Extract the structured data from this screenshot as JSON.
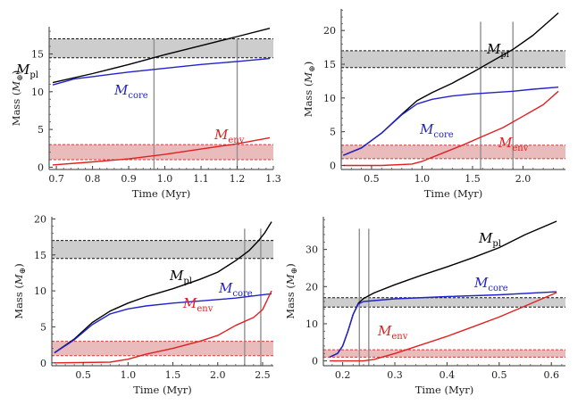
{
  "chart_data": [
    {
      "type": "line",
      "xlabel": "Time (Myr)",
      "ylabel_prefix": "Mass (",
      "ylabel_sym": "M",
      "ylabel_sub": "⊕",
      "ylabel_suffix": ")",
      "xlim": [
        0.68,
        1.3
      ],
      "ylim": [
        -0.3,
        18.6
      ],
      "xticks": [
        0.7,
        0.8,
        0.9,
        1.0,
        1.1,
        1.2,
        1.3
      ],
      "xticklabels": [
        "0.7",
        "0.8",
        "0.9",
        "1.0",
        "1.1",
        "1.2",
        "1.3"
      ],
      "yticks": [
        0,
        5,
        10,
        15
      ],
      "yticklabels": [
        "0",
        "5",
        "10",
        "15"
      ],
      "bands": [
        {
          "lo": 14.5,
          "hi": 17.0,
          "fill": "#c8c8c8",
          "edge": "#111111"
        },
        {
          "lo": 1.0,
          "hi": 3.0,
          "fill": "#e8b4b4",
          "edge": "#d43a3a"
        }
      ],
      "vlines": [
        0.97,
        1.2
      ],
      "series": [
        {
          "name": "pl",
          "color": "#000000",
          "x": [
            0.69,
            0.8,
            0.9,
            1.0,
            1.1,
            1.2,
            1.29
          ],
          "y": [
            11.2,
            12.4,
            13.6,
            14.9,
            16.1,
            17.3,
            18.4
          ]
        },
        {
          "name": "core",
          "color": "#2222cc",
          "x": [
            0.69,
            0.75,
            0.8,
            0.9,
            1.0,
            1.1,
            1.2,
            1.29
          ],
          "y": [
            10.9,
            11.7,
            12.0,
            12.6,
            13.1,
            13.6,
            14.0,
            14.4
          ]
        },
        {
          "name": "env",
          "color": "#e02020",
          "x": [
            0.69,
            0.8,
            0.9,
            1.0,
            1.1,
            1.2,
            1.29
          ],
          "y": [
            0.3,
            0.7,
            1.1,
            1.7,
            2.4,
            3.1,
            3.9
          ]
        }
      ]
    },
    {
      "type": "line",
      "xlabel": "Time (Myr)",
      "ylabel_prefix": "Mass (",
      "ylabel_sym": "M",
      "ylabel_sub": "⊕",
      "ylabel_suffix": ")",
      "xlim": [
        0.2,
        2.42
      ],
      "ylim": [
        -0.6,
        23.2
      ],
      "xticks": [
        0.5,
        1.0,
        1.5,
        2.0
      ],
      "xticklabels": [
        "0.5",
        "1.0",
        "1.5",
        "2.0"
      ],
      "yticks": [
        0,
        5,
        10,
        15,
        20
      ],
      "yticklabels": [
        "0",
        "5",
        "10",
        "15",
        "20"
      ],
      "bands": [
        {
          "lo": 14.5,
          "hi": 17.0,
          "fill": "#c8c8c8",
          "edge": "#111111"
        },
        {
          "lo": 1.0,
          "hi": 3.0,
          "fill": "#e8b4b4",
          "edge": "#d43a3a"
        }
      ],
      "vlines": [
        1.58,
        1.9
      ],
      "series": [
        {
          "name": "pl",
          "color": "#000000",
          "x": [
            0.22,
            0.4,
            0.6,
            0.8,
            0.95,
            1.1,
            1.3,
            1.5,
            1.7,
            1.9,
            2.1,
            2.35
          ],
          "y": [
            1.5,
            2.6,
            4.8,
            7.6,
            9.6,
            10.8,
            12.2,
            13.8,
            15.5,
            17.2,
            19.3,
            22.6
          ]
        },
        {
          "name": "core",
          "color": "#2222cc",
          "x": [
            0.22,
            0.4,
            0.6,
            0.8,
            0.95,
            1.1,
            1.3,
            1.5,
            1.7,
            1.9,
            2.1,
            2.35
          ],
          "y": [
            1.5,
            2.6,
            4.8,
            7.5,
            9.1,
            9.8,
            10.3,
            10.6,
            10.8,
            11.0,
            11.3,
            11.6
          ]
        },
        {
          "name": "env",
          "color": "#e02020",
          "x": [
            0.22,
            0.6,
            0.9,
            1.0,
            1.2,
            1.4,
            1.6,
            1.8,
            2.0,
            2.2,
            2.35
          ],
          "y": [
            0.0,
            0.0,
            0.2,
            0.6,
            1.8,
            3.0,
            4.3,
            5.6,
            7.3,
            9.0,
            11.0
          ]
        }
      ]
    },
    {
      "type": "line",
      "xlabel": "Time (Myr)",
      "ylabel_prefix": "Mass (",
      "ylabel_sym": "M",
      "ylabel_sub": "⊕",
      "ylabel_suffix": ")",
      "xlim": [
        0.15,
        2.62
      ],
      "ylim": [
        -0.4,
        20.3
      ],
      "xticks": [
        0.5,
        1.0,
        1.5,
        2.0,
        2.5
      ],
      "xticklabels": [
        "0.5",
        "1.0",
        "1.5",
        "2.0",
        "2.5"
      ],
      "yticks": [
        0,
        5,
        10,
        15,
        20
      ],
      "yticklabels": [
        "0",
        "5",
        "10",
        "15",
        "20"
      ],
      "bands": [
        {
          "lo": 14.5,
          "hi": 17.0,
          "fill": "#c8c8c8",
          "edge": "#111111"
        },
        {
          "lo": 1.0,
          "hi": 3.0,
          "fill": "#e8b4b4",
          "edge": "#d43a3a"
        }
      ],
      "vlines": [
        2.3,
        2.48
      ],
      "series": [
        {
          "name": "pl",
          "color": "#000000",
          "x": [
            0.18,
            0.4,
            0.6,
            0.8,
            1.0,
            1.2,
            1.5,
            1.8,
            2.0,
            2.2,
            2.35,
            2.45,
            2.52,
            2.6
          ],
          "y": [
            1.4,
            3.3,
            5.6,
            7.2,
            8.3,
            9.2,
            10.3,
            11.6,
            12.6,
            14.2,
            15.6,
            16.9,
            18.0,
            19.6
          ]
        },
        {
          "name": "core",
          "color": "#2222cc",
          "x": [
            0.18,
            0.4,
            0.6,
            0.8,
            1.0,
            1.2,
            1.5,
            1.8,
            2.0,
            2.2,
            2.4,
            2.6
          ],
          "y": [
            1.4,
            3.2,
            5.3,
            6.8,
            7.5,
            7.9,
            8.3,
            8.6,
            8.8,
            9.0,
            9.3,
            9.6
          ]
        },
        {
          "name": "env",
          "color": "#e02020",
          "x": [
            0.18,
            0.8,
            1.0,
            1.2,
            1.5,
            1.8,
            2.0,
            2.2,
            2.4,
            2.5,
            2.6
          ],
          "y": [
            0.0,
            0.1,
            0.5,
            1.2,
            2.0,
            3.0,
            3.8,
            5.2,
            6.3,
            7.4,
            10.0
          ]
        }
      ]
    },
    {
      "type": "line",
      "xlabel": "Time (Myr)",
      "ylabel_prefix": "Mass (",
      "ylabel_sym": "M",
      "ylabel_sub": "⊕",
      "ylabel_suffix": ")",
      "xlim": [
        0.163,
        0.627
      ],
      "ylim": [
        -1.3,
        38.8
      ],
      "xticks": [
        0.2,
        0.3,
        0.4,
        0.5,
        0.6
      ],
      "xticklabels": [
        "0.2",
        "0.3",
        "0.4",
        "0.5",
        "0.6"
      ],
      "yticks": [
        0,
        10,
        20,
        30
      ],
      "yticklabels": [
        "0",
        "10",
        "20",
        "30"
      ],
      "bands": [
        {
          "lo": 14.5,
          "hi": 17.0,
          "fill": "#c8c8c8",
          "edge": "#111111"
        },
        {
          "lo": 1.0,
          "hi": 3.0,
          "fill": "#e8b4b4",
          "edge": "#d43a3a"
        }
      ],
      "vlines": [
        0.232,
        0.25
      ],
      "series": [
        {
          "name": "pl",
          "color": "#000000",
          "x": [
            0.175,
            0.19,
            0.2,
            0.21,
            0.22,
            0.23,
            0.24,
            0.26,
            0.3,
            0.35,
            0.4,
            0.45,
            0.5,
            0.55,
            0.61
          ],
          "y": [
            1.0,
            2.0,
            4.0,
            8.0,
            12.5,
            15.5,
            16.8,
            18.3,
            20.5,
            23.0,
            25.3,
            27.8,
            30.5,
            34.0,
            37.6
          ]
        },
        {
          "name": "core",
          "color": "#2222cc",
          "x": [
            0.175,
            0.19,
            0.2,
            0.21,
            0.22,
            0.23,
            0.24,
            0.3,
            0.4,
            0.5,
            0.61
          ],
          "y": [
            1.0,
            2.0,
            4.0,
            8.0,
            12.5,
            15.3,
            16.0,
            16.7,
            17.3,
            17.8,
            18.6
          ]
        },
        {
          "name": "env",
          "color": "#e02020",
          "x": [
            0.175,
            0.24,
            0.26,
            0.3,
            0.35,
            0.4,
            0.45,
            0.5,
            0.55,
            0.61
          ],
          "y": [
            0.0,
            0.0,
            0.4,
            2.0,
            4.3,
            6.6,
            9.2,
            11.8,
            14.8,
            18.4
          ]
        }
      ]
    }
  ]
}
